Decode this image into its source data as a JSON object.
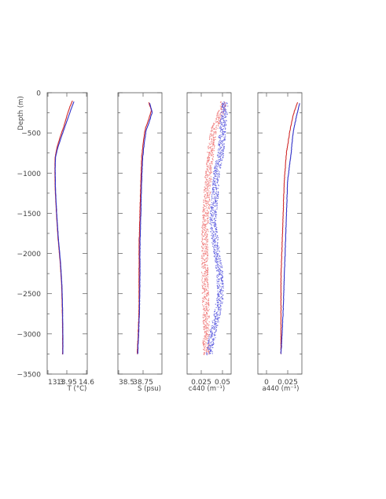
{
  "chart_data": [
    {
      "type": "line",
      "xlabel": "T (°C)",
      "ylabel": "Depth (m)",
      "xlim": [
        13.3,
        14.6
      ],
      "ylim": [
        -3500,
        0
      ],
      "xticks": [
        "13.3",
        "13.95",
        "14.6"
      ],
      "yticks": [
        "0",
        "−500",
        "−1000",
        "−1500",
        "−2000",
        "−2500",
        "−3000",
        "−3500"
      ],
      "series": [
        {
          "color": "#d02828",
          "points": [
            [
              14.12,
              -100
            ],
            [
              14.03,
              -180
            ],
            [
              13.93,
              -300
            ],
            [
              13.84,
              -420
            ],
            [
              13.72,
              -550
            ],
            [
              13.62,
              -680
            ],
            [
              13.56,
              -800
            ],
            [
              13.55,
              -950
            ],
            [
              13.56,
              -1200
            ],
            [
              13.6,
              -1500
            ],
            [
              13.65,
              -1800
            ],
            [
              13.72,
              -2100
            ],
            [
              13.77,
              -2400
            ],
            [
              13.79,
              -2700
            ],
            [
              13.8,
              -3000
            ],
            [
              13.8,
              -3260
            ]
          ]
        },
        {
          "color": "#3030c8",
          "points": [
            [
              14.17,
              -110
            ],
            [
              14.08,
              -200
            ],
            [
              13.97,
              -320
            ],
            [
              13.86,
              -440
            ],
            [
              13.75,
              -560
            ],
            [
              13.64,
              -690
            ],
            [
              13.57,
              -800
            ],
            [
              13.56,
              -950
            ],
            [
              13.57,
              -1200
            ],
            [
              13.61,
              -1500
            ],
            [
              13.66,
              -1800
            ],
            [
              13.73,
              -2100
            ],
            [
              13.78,
              -2400
            ],
            [
              13.8,
              -2700
            ],
            [
              13.81,
              -3000
            ],
            [
              13.81,
              -3260
            ]
          ]
        }
      ]
    },
    {
      "type": "line",
      "xlabel": "S (psu)",
      "xlim": [
        38.5,
        39.0
      ],
      "ylim": [
        -3500,
        0
      ],
      "xticks": [
        "38.5",
        "38.75"
      ],
      "series": [
        {
          "color": "#d02828",
          "points": [
            [
              38.85,
              -120
            ],
            [
              38.88,
              -220
            ],
            [
              38.85,
              -330
            ],
            [
              38.81,
              -450
            ],
            [
              38.79,
              -600
            ],
            [
              38.77,
              -800
            ],
            [
              38.76,
              -1100
            ],
            [
              38.75,
              -1500
            ],
            [
              38.74,
              -1900
            ],
            [
              38.74,
              -2300
            ],
            [
              38.74,
              -2700
            ],
            [
              38.73,
              -3000
            ],
            [
              38.72,
              -3260
            ]
          ]
        },
        {
          "color": "#3030c8",
          "points": [
            [
              38.86,
              -130
            ],
            [
              38.89,
              -240
            ],
            [
              38.86,
              -350
            ],
            [
              38.82,
              -470
            ],
            [
              38.8,
              -620
            ],
            [
              38.78,
              -820
            ],
            [
              38.77,
              -1100
            ],
            [
              38.76,
              -1500
            ],
            [
              38.75,
              -1900
            ],
            [
              38.75,
              -2300
            ],
            [
              38.745,
              -2700
            ],
            [
              38.735,
              -3000
            ],
            [
              38.725,
              -3260
            ]
          ]
        }
      ]
    },
    {
      "type": "scatter",
      "xlabel": "c440 (m⁻¹)",
      "xlim": [
        0,
        0.06
      ],
      "ylim": [
        -3500,
        0
      ],
      "xticks": [
        "0.025",
        "0.05"
      ],
      "series": [
        {
          "color": "#f08080",
          "points": [
            [
              0.05,
              -120
            ],
            [
              0.044,
              -300
            ],
            [
              0.035,
              -500
            ],
            [
              0.032,
              -750
            ],
            [
              0.029,
              -1000
            ],
            [
              0.027,
              -1300
            ],
            [
              0.025,
              -1600
            ],
            [
              0.024,
              -1900
            ],
            [
              0.024,
              -2200
            ],
            [
              0.025,
              -2500
            ],
            [
              0.026,
              -2800
            ],
            [
              0.026,
              -3000
            ],
            [
              0.026,
              -3260
            ]
          ]
        },
        {
          "color": "#6060e0",
          "points": [
            [
              0.052,
              -120
            ],
            [
              0.05,
              -300
            ],
            [
              0.048,
              -500
            ],
            [
              0.046,
              -750
            ],
            [
              0.04,
              -1000
            ],
            [
              0.038,
              -1300
            ],
            [
              0.035,
              -1600
            ],
            [
              0.039,
              -1900
            ],
            [
              0.044,
              -2200
            ],
            [
              0.046,
              -2500
            ],
            [
              0.04,
              -2800
            ],
            [
              0.035,
              -3000
            ],
            [
              0.03,
              -3260
            ]
          ]
        }
      ]
    },
    {
      "type": "line",
      "xlabel": "a440 (m⁻¹)",
      "xlim": [
        -0.005,
        0.035
      ],
      "ylim": [
        -3500,
        0
      ],
      "xticks": [
        "0",
        "0.025"
      ],
      "series": [
        {
          "color": "#d02828",
          "points": [
            [
              0.031,
              -120
            ],
            [
              0.027,
              -280
            ],
            [
              0.024,
              -480
            ],
            [
              0.021,
              -750
            ],
            [
              0.019,
              -1100
            ],
            [
              0.018,
              -1500
            ],
            [
              0.017,
              -1900
            ],
            [
              0.016,
              -2300
            ],
            [
              0.016,
              -2700
            ],
            [
              0.016,
              -3000
            ],
            [
              0.016,
              -3260
            ]
          ]
        },
        {
          "color": "#3030c8",
          "points": [
            [
              0.033,
              -130
            ],
            [
              0.03,
              -300
            ],
            [
              0.027,
              -500
            ],
            [
              0.025,
              -780
            ],
            [
              0.022,
              -1100
            ],
            [
              0.021,
              -1500
            ],
            [
              0.02,
              -1900
            ],
            [
              0.019,
              -2300
            ],
            [
              0.018,
              -2700
            ],
            [
              0.017,
              -3000
            ],
            [
              0.016,
              -3260
            ]
          ]
        }
      ]
    }
  ]
}
